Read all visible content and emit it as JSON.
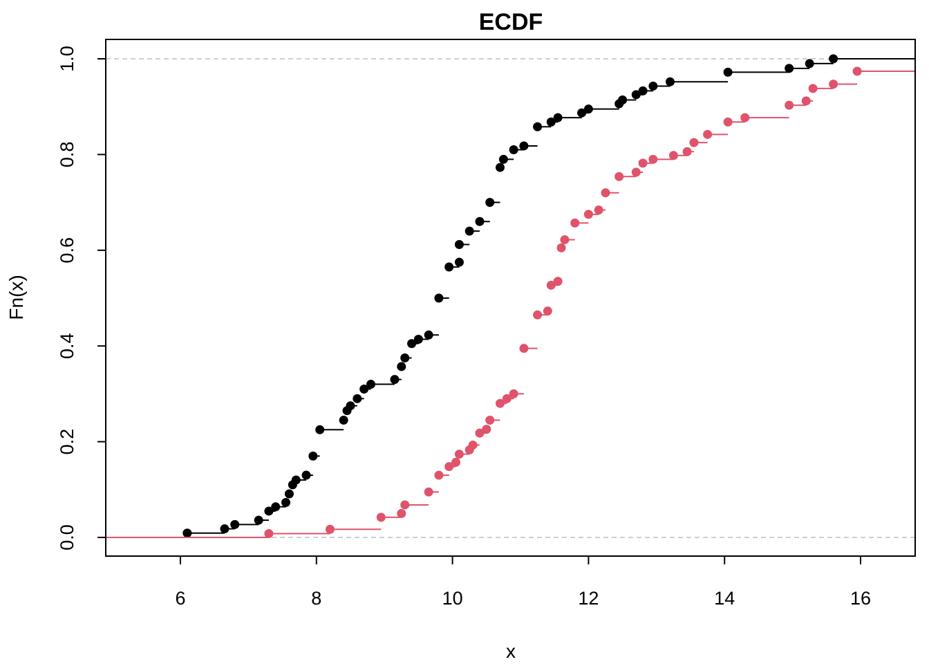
{
  "chart_data": {
    "type": "scatter",
    "subtype": "ecdf-step",
    "title": "ECDF",
    "xlabel": "x",
    "ylabel": "Fn(x)",
    "xlim": [
      4.95,
      16.9
    ],
    "ylim": [
      -0.04,
      1.04
    ],
    "x_ticks": [
      6,
      8,
      10,
      12,
      14,
      16
    ],
    "y_ticks": [
      0.0,
      0.2,
      0.4,
      0.6,
      0.8,
      1.0
    ],
    "x_tick_labels": [
      "6",
      "8",
      "10",
      "12",
      "14",
      "16"
    ],
    "y_tick_labels": [
      "0.0",
      "0.2",
      "0.4",
      "0.6",
      "0.8",
      "1.0"
    ],
    "reference_lines": [
      0,
      1
    ],
    "reference_line_color": "#BEBEBE",
    "grid": false,
    "legend": "none",
    "series": [
      {
        "color": "#000000",
        "points": [
          [
            6.1,
            0.009
          ],
          [
            6.65,
            0.018
          ],
          [
            6.8,
            0.027
          ],
          [
            7.15,
            0.036
          ],
          [
            7.3,
            0.055
          ],
          [
            7.4,
            0.064
          ],
          [
            7.55,
            0.073
          ],
          [
            7.6,
            0.091
          ],
          [
            7.65,
            0.11
          ],
          [
            7.7,
            0.12
          ],
          [
            7.85,
            0.13
          ],
          [
            7.95,
            0.17
          ],
          [
            8.05,
            0.225
          ],
          [
            8.4,
            0.245
          ],
          [
            8.45,
            0.265
          ],
          [
            8.5,
            0.275
          ],
          [
            8.6,
            0.29
          ],
          [
            8.7,
            0.31
          ],
          [
            8.8,
            0.32
          ],
          [
            9.15,
            0.33
          ],
          [
            9.25,
            0.357
          ],
          [
            9.3,
            0.375
          ],
          [
            9.4,
            0.405
          ],
          [
            9.5,
            0.414
          ],
          [
            9.65,
            0.423
          ],
          [
            9.8,
            0.5
          ],
          [
            9.95,
            0.565
          ],
          [
            10.1,
            0.575
          ],
          [
            10.1,
            0.612
          ],
          [
            10.25,
            0.64
          ],
          [
            10.4,
            0.66
          ],
          [
            10.55,
            0.7
          ],
          [
            10.7,
            0.773
          ],
          [
            10.75,
            0.79
          ],
          [
            10.9,
            0.81
          ],
          [
            11.05,
            0.818
          ],
          [
            11.25,
            0.858
          ],
          [
            11.45,
            0.868
          ],
          [
            11.55,
            0.877
          ],
          [
            11.9,
            0.887
          ],
          [
            12.0,
            0.895
          ],
          [
            12.45,
            0.906
          ],
          [
            12.5,
            0.914
          ],
          [
            12.7,
            0.925
          ],
          [
            12.8,
            0.933
          ],
          [
            12.95,
            0.943
          ],
          [
            13.2,
            0.952
          ],
          [
            14.05,
            0.972
          ],
          [
            14.95,
            0.98
          ],
          [
            15.25,
            0.99
          ],
          [
            15.6,
            1.0
          ]
        ],
        "right_end": 16.9
      },
      {
        "color": "#DF536B",
        "points": [
          [
            7.3,
            0.008
          ],
          [
            8.2,
            0.017
          ],
          [
            8.95,
            0.042
          ],
          [
            9.25,
            0.05
          ],
          [
            9.3,
            0.068
          ],
          [
            9.65,
            0.095
          ],
          [
            9.8,
            0.13
          ],
          [
            9.95,
            0.148
          ],
          [
            10.05,
            0.157
          ],
          [
            10.1,
            0.174
          ],
          [
            10.25,
            0.183
          ],
          [
            10.3,
            0.193
          ],
          [
            10.4,
            0.218
          ],
          [
            10.5,
            0.226
          ],
          [
            10.55,
            0.245
          ],
          [
            10.7,
            0.28
          ],
          [
            10.8,
            0.29
          ],
          [
            10.9,
            0.3
          ],
          [
            11.05,
            0.395
          ],
          [
            11.25,
            0.465
          ],
          [
            11.4,
            0.473
          ],
          [
            11.45,
            0.527
          ],
          [
            11.55,
            0.535
          ],
          [
            11.6,
            0.605
          ],
          [
            11.65,
            0.622
          ],
          [
            11.8,
            0.657
          ],
          [
            12.0,
            0.675
          ],
          [
            12.15,
            0.684
          ],
          [
            12.25,
            0.72
          ],
          [
            12.45,
            0.754
          ],
          [
            12.7,
            0.763
          ],
          [
            12.8,
            0.782
          ],
          [
            12.95,
            0.79
          ],
          [
            13.25,
            0.798
          ],
          [
            13.45,
            0.806
          ],
          [
            13.55,
            0.825
          ],
          [
            13.75,
            0.842
          ],
          [
            14.05,
            0.868
          ],
          [
            14.3,
            0.877
          ],
          [
            14.95,
            0.903
          ],
          [
            15.2,
            0.912
          ],
          [
            15.3,
            0.938
          ],
          [
            15.6,
            0.947
          ],
          [
            15.95,
            0.974
          ]
        ],
        "right_end": 16.9
      }
    ]
  }
}
